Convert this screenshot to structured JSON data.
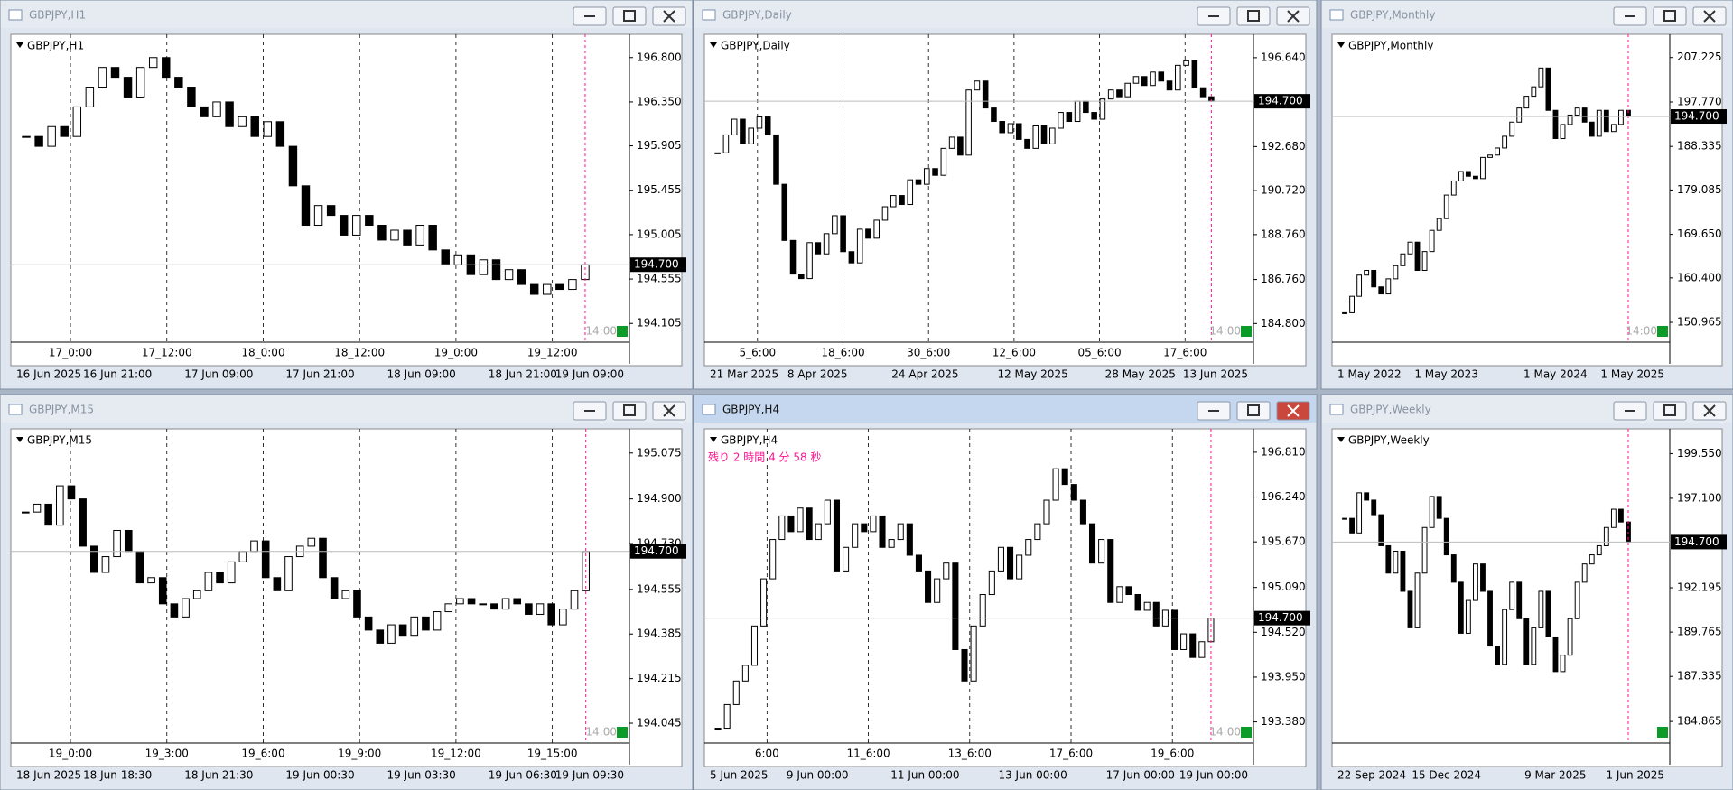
{
  "windows": [
    {
      "title": "GBPJPY,H1",
      "ylim": [
        193.97,
        196.99
      ],
      "yticks": [
        {
          "value": 196.8,
          "label": "196.800"
        },
        {
          "value": 196.35,
          "label": "196.350"
        },
        {
          "value": 195.905,
          "label": "195.905"
        },
        {
          "value": 195.455,
          "label": "195.455"
        },
        {
          "value": 195.005,
          "label": "195.005"
        },
        {
          "value": 194.555,
          "label": "194.555"
        },
        {
          "value": 194.105,
          "label": "194.105"
        }
      ],
      "price": {
        "value": 194.7,
        "label": "194.700"
      },
      "xlabels": [
        "16 Jun 2025",
        "16 Jun 21:00",
        "17 Jun 09:00",
        "17 Jun 21:00",
        "18 Jun 09:00",
        "18 Jun 21:00",
        "19 Jun 09:00"
      ],
      "inner_labels": [
        "17_0:00",
        "17_12:00",
        "18_0:00",
        "18_12:00",
        "19_0:00",
        "19_12:00"
      ],
      "time_marker": "14:00",
      "values": [
        196.0,
        195.9,
        196.1,
        196.0,
        196.3,
        196.5,
        196.7,
        196.6,
        196.4,
        196.7,
        196.8,
        196.6,
        196.5,
        196.3,
        196.2,
        196.35,
        196.1,
        196.2,
        196.0,
        196.15,
        195.9,
        195.5,
        195.1,
        195.3,
        195.2,
        195.0,
        195.2,
        195.1,
        194.95,
        195.05,
        194.9,
        195.1,
        194.85,
        194.7,
        194.8,
        194.6,
        194.75,
        194.55,
        194.65,
        194.5,
        194.4,
        194.5,
        194.45,
        194.55,
        194.7
      ]
    },
    {
      "title": "GBPJPY,Daily",
      "ylim": [
        184.21,
        197.48
      ],
      "yticks": [
        {
          "value": 196.64,
          "label": "196.640"
        },
        {
          "value": 192.68,
          "label": "192.680"
        },
        {
          "value": 190.72,
          "label": "190.720"
        },
        {
          "value": 188.76,
          "label": "188.760"
        },
        {
          "value": 186.76,
          "label": "186.760"
        },
        {
          "value": 184.8,
          "label": "184.800"
        }
      ],
      "price": {
        "value": 194.7,
        "label": "194.700"
      },
      "xlabels": [
        "21 Mar 2025",
        "8 Apr 2025",
        "24 Apr 2025",
        "12 May 2025",
        "28 May 2025",
        "13 Jun 2025"
      ],
      "inner_labels": [
        "5_6:00",
        "18_6:00",
        "30_6:00",
        "12_6:00",
        "05_6:00",
        "17_6:00"
      ],
      "time_marker": "14:00",
      "values": [
        192.4,
        193.2,
        193.9,
        192.8,
        193.5,
        194.0,
        193.2,
        191.0,
        188.5,
        187.0,
        186.8,
        188.4,
        187.9,
        188.8,
        189.6,
        188.0,
        187.5,
        189.0,
        188.6,
        189.4,
        190.0,
        190.5,
        190.1,
        191.2,
        191.0,
        191.7,
        191.4,
        192.6,
        193.1,
        192.3,
        195.2,
        195.6,
        194.4,
        193.8,
        193.3,
        193.7,
        193.0,
        192.6,
        193.6,
        192.8,
        193.5,
        194.2,
        193.8,
        194.7,
        194.2,
        193.9,
        194.8,
        195.2,
        194.9,
        195.5,
        195.8,
        195.4,
        196.0,
        195.6,
        195.2,
        196.3,
        196.5,
        195.3,
        194.9,
        194.7
      ]
    },
    {
      "title": "GBPJPY,Monthly",
      "ylim": [
        147.9,
        211.2
      ],
      "yticks": [
        {
          "value": 207.225,
          "label": "207.225"
        },
        {
          "value": 197.77,
          "label": "197.770"
        },
        {
          "value": 188.335,
          "label": "188.335"
        },
        {
          "value": 179.085,
          "label": "179.085"
        },
        {
          "value": 169.65,
          "label": "169.650"
        },
        {
          "value": 160.4,
          "label": "160.400"
        },
        {
          "value": 150.965,
          "label": "150.965"
        }
      ],
      "price": {
        "value": 194.7,
        "label": "194.700"
      },
      "xlabels": [
        "1 May 2022",
        "1 May 2023",
        "1 May 2024",
        "1 May 2025"
      ],
      "inner_labels": [],
      "time_marker": "14:00",
      "values": [
        153.0,
        156.5,
        161.0,
        162.0,
        158.5,
        157.0,
        160.2,
        163.0,
        165.5,
        168.0,
        162.0,
        166.0,
        170.5,
        173.0,
        178.0,
        181.0,
        183.0,
        182.0,
        181.5,
        186.0,
        186.5,
        188.0,
        190.5,
        193.5,
        196.5,
        199.0,
        201.0,
        205.0,
        196.0,
        190.0,
        193.0,
        195.0,
        196.5,
        193.5,
        190.5,
        196.0,
        191.5,
        193.0,
        196.0,
        194.7
      ]
    },
    {
      "title": "GBPJPY,M15",
      "ylim": [
        193.99,
        195.15
      ],
      "yticks": [
        {
          "value": 195.075,
          "label": "195.075"
        },
        {
          "value": 194.9,
          "label": "194.900"
        },
        {
          "value": 194.73,
          "label": "194.730"
        },
        {
          "value": 194.555,
          "label": "194.555"
        },
        {
          "value": 194.385,
          "label": "194.385"
        },
        {
          "value": 194.215,
          "label": "194.215"
        },
        {
          "value": 194.045,
          "label": "194.045"
        }
      ],
      "price": {
        "value": 194.7,
        "label": "194.700"
      },
      "xlabels": [
        "18 Jun 2025",
        "18 Jun 18:30",
        "18 Jun 21:30",
        "19 Jun 00:30",
        "19 Jun 03:30",
        "19 Jun 06:30",
        "19 Jun 09:30"
      ],
      "inner_labels": [
        "19_0:00",
        "19_3:00",
        "19_6:00",
        "19_9:00",
        "19_12:00",
        "19_15:00"
      ],
      "time_marker": "14:00",
      "values": [
        194.85,
        194.88,
        194.8,
        194.95,
        194.9,
        194.72,
        194.62,
        194.68,
        194.78,
        194.7,
        194.58,
        194.6,
        194.5,
        194.45,
        194.52,
        194.55,
        194.62,
        194.58,
        194.66,
        194.7,
        194.74,
        194.6,
        194.55,
        194.68,
        194.72,
        194.75,
        194.6,
        194.52,
        194.55,
        194.45,
        194.4,
        194.35,
        194.42,
        194.38,
        194.45,
        194.4,
        194.47,
        194.5,
        194.52,
        194.5,
        194.5,
        194.48,
        194.52,
        194.5,
        194.46,
        194.5,
        194.42,
        194.48,
        194.55,
        194.7
      ]
    },
    {
      "title": "GBPJPY,H4",
      "ylim": [
        193.18,
        197.05
      ],
      "notice": "残り 2 時間 4 分 58 秒",
      "yticks": [
        {
          "value": 196.81,
          "label": "196.810"
        },
        {
          "value": 196.24,
          "label": "196.240"
        },
        {
          "value": 195.67,
          "label": "195.670"
        },
        {
          "value": 195.09,
          "label": "195.090"
        },
        {
          "value": 194.52,
          "label": "194.520"
        },
        {
          "value": 193.95,
          "label": "193.950"
        },
        {
          "value": 193.38,
          "label": "193.380"
        }
      ],
      "price": {
        "value": 194.7,
        "label": "194.700"
      },
      "xlabels": [
        "5 Jun 2025",
        "9 Jun 00:00",
        "11 Jun 00:00",
        "13 Jun 00:00",
        "17 Jun 00:00",
        "19 Jun 00:00"
      ],
      "inner_labels": [
        "6:00",
        "11_6:00",
        "13_6:00",
        "17_6:00",
        "19_6:00"
      ],
      "time_marker": "14:00",
      "values": [
        193.3,
        193.6,
        193.9,
        194.1,
        194.6,
        195.2,
        195.7,
        196.0,
        195.8,
        196.1,
        195.7,
        195.9,
        196.2,
        195.3,
        195.6,
        195.9,
        195.8,
        196.0,
        195.6,
        195.7,
        195.9,
        195.5,
        195.3,
        194.9,
        195.2,
        195.4,
        194.3,
        193.9,
        194.6,
        195.0,
        195.3,
        195.6,
        195.2,
        195.5,
        195.7,
        195.9,
        196.2,
        196.6,
        196.4,
        196.2,
        195.9,
        195.4,
        195.7,
        194.9,
        195.1,
        195.0,
        194.8,
        194.9,
        194.6,
        194.8,
        194.3,
        194.5,
        194.2,
        194.4,
        194.7
      ]
    },
    {
      "title": "GBPJPY,Weekly",
      "ylim": [
        183.98,
        200.66
      ],
      "yticks": [
        {
          "value": 199.55,
          "label": "199.550"
        },
        {
          "value": 197.1,
          "label": "197.100"
        },
        {
          "value": 192.195,
          "label": "192.195"
        },
        {
          "value": 189.765,
          "label": "189.765"
        },
        {
          "value": 187.335,
          "label": "187.335"
        },
        {
          "value": 184.865,
          "label": "184.865"
        }
      ],
      "price": {
        "value": 194.7,
        "label": "194.700"
      },
      "xlabels": [
        "22 Sep 2024",
        "15 Dec 2024",
        "9 Mar 2025",
        "1 Jun 2025"
      ],
      "inner_labels": [],
      "values": [
        196.0,
        195.2,
        197.4,
        197.0,
        196.2,
        194.5,
        193.0,
        194.2,
        192.0,
        190.0,
        193.0,
        195.5,
        197.2,
        196.0,
        194.0,
        192.5,
        189.7,
        191.5,
        193.5,
        192.0,
        189.0,
        188.0,
        191.0,
        192.5,
        190.5,
        188.0,
        190.0,
        192.0,
        189.5,
        187.6,
        188.5,
        190.5,
        192.5,
        193.5,
        194.0,
        194.5,
        195.5,
        196.5,
        195.8,
        194.7
      ]
    }
  ]
}
